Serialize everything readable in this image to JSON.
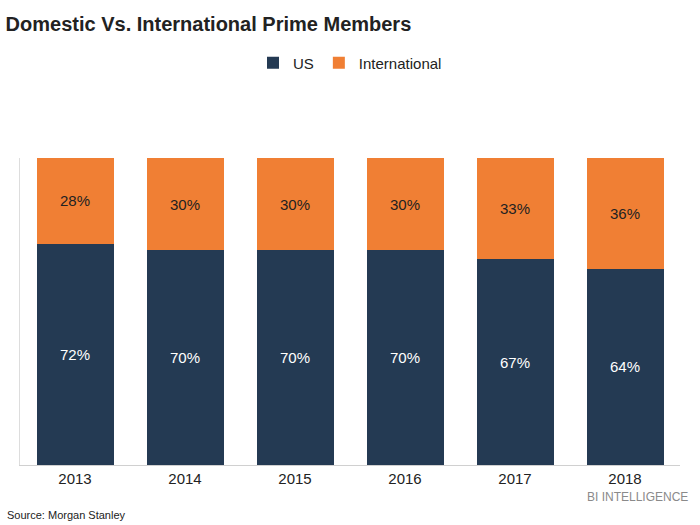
{
  "chart_data": {
    "type": "bar",
    "title": "Domestic Vs. International Prime Members",
    "categories": [
      "2013",
      "2014",
      "2015",
      "2016",
      "2017",
      "2018"
    ],
    "series": [
      {
        "name": "US",
        "color": "#243a53",
        "values": [
          72,
          70,
          70,
          70,
          67,
          64
        ],
        "value_labels": [
          "72%",
          "70%",
          "70%",
          "70%",
          "67%",
          "64%"
        ]
      },
      {
        "name": "International",
        "color": "#f07f34",
        "values": [
          28,
          30,
          30,
          30,
          33,
          36
        ],
        "value_labels": [
          "28%",
          "30%",
          "30%",
          "30%",
          "33%",
          "36%"
        ]
      }
    ],
    "ylim": [
      0,
      100
    ],
    "stacked": true,
    "data_labels": true,
    "grid": false,
    "legend": "top",
    "tick_labels": "x",
    "annotations": [
      "Source: Morgan Stanley",
      "BI INTELLIGENCE"
    ]
  }
}
